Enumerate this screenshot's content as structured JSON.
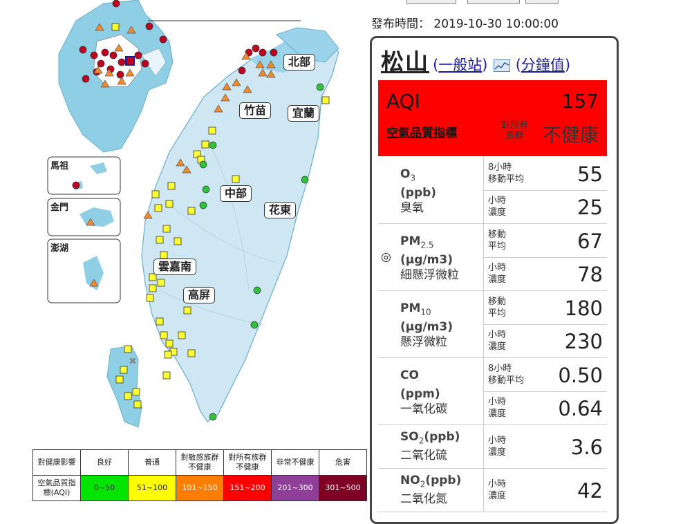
{
  "publish": {
    "label": "發布時間：",
    "time": "2019-10-30 10:00:00"
  },
  "station": {
    "name": "松山",
    "type": "一般站",
    "minute_link": "分鐘值"
  },
  "aqi": {
    "label": "AQI",
    "value": "157",
    "sub_label": "空氣品質指標",
    "group_line1": "對所有",
    "group_line2": "族群",
    "status": "不健康",
    "color": "#ff0000"
  },
  "pollutants": [
    {
      "formula": "O",
      "sub": "3",
      "sup": "",
      "tail": "",
      "unit": "(ppb)",
      "name": "臭氧",
      "mark": "",
      "readings": [
        {
          "label1": "8小時",
          "label2": "移動平均",
          "value": "55"
        },
        {
          "label1": "小時",
          "label2": "濃度",
          "value": "25"
        }
      ]
    },
    {
      "formula": "PM",
      "sub": "2.5",
      "sup": "",
      "tail": "",
      "unit": "(μg/m3)",
      "name": "細懸浮微粒",
      "mark": "◎",
      "readings": [
        {
          "label1": "移動",
          "label2": "平均",
          "value": "67"
        },
        {
          "label1": "小時",
          "label2": "濃度",
          "value": "78"
        }
      ]
    },
    {
      "formula": "PM",
      "sub": "10",
      "sup": "",
      "tail": "",
      "unit": "(μg/m3)",
      "name": "懸浮微粒",
      "mark": "",
      "readings": [
        {
          "label1": "移動",
          "label2": "平均",
          "value": "180"
        },
        {
          "label1": "小時",
          "label2": "濃度",
          "value": "230"
        }
      ]
    },
    {
      "formula": "CO",
      "sub": "",
      "sup": "",
      "tail": "",
      "unit": "(ppm)",
      "name": "一氧化碳",
      "mark": "",
      "readings": [
        {
          "label1": "8小時",
          "label2": "移動平均",
          "value": "0.50"
        },
        {
          "label1": "小時",
          "label2": "濃度",
          "value": "0.64"
        }
      ]
    },
    {
      "formula": "SO",
      "sub": "2",
      "sup": "",
      "tail": "(ppb)",
      "unit": "",
      "name": "二氧化硫",
      "mark": "",
      "readings": [
        {
          "label1": "小時",
          "label2": "濃度",
          "value": "3.6"
        }
      ]
    },
    {
      "formula": "NO",
      "sub": "2",
      "sup": "",
      "tail": "(ppb)",
      "unit": "",
      "name": "二氧化氮",
      "mark": "",
      "readings": [
        {
          "label1": "小時",
          "label2": "濃度",
          "value": "42"
        }
      ]
    }
  ],
  "regions": [
    "北部",
    "竹苗",
    "宜蘭",
    "中部",
    "花東",
    "雲嘉南",
    "高屏"
  ],
  "insets": [
    "馬祖",
    "金門",
    "澎湖"
  ],
  "legend": {
    "row1": [
      "對健康影響",
      "良好",
      "普通",
      "對敏感族群不健康",
      "對所有族群不健康",
      "非常不健康",
      "危害"
    ],
    "row2": [
      "空氣品質指標(AQI)",
      "0~50",
      "51~100",
      "101~150",
      "151~200",
      "201~300",
      "301~500"
    ],
    "colors": [
      "#00e400",
      "#ffff00",
      "#ff7e00",
      "#ff0000",
      "#8f3f97",
      "#7e0023"
    ]
  }
}
